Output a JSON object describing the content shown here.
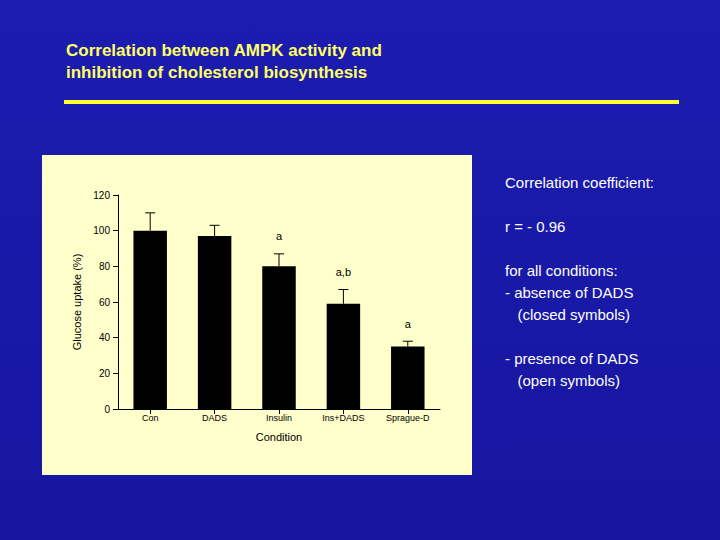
{
  "chart_data": {
    "type": "bar",
    "categories": [
      "Con",
      "DADS",
      "Insulin",
      "Ins+DADS",
      "Sprague-D"
    ],
    "values": [
      100,
      97,
      80,
      59,
      35
    ],
    "errors": [
      10,
      6,
      7,
      8,
      3
    ],
    "annotations": [
      null,
      null,
      "a",
      "a,b",
      "a"
    ],
    "color": "#000000",
    "xlabel": "Condition",
    "ylabel": "Glucose uptake (%)",
    "ylim": [
      0,
      120
    ],
    "yticks": [
      0,
      20,
      40,
      60,
      80,
      100,
      120
    ],
    "grid": false
  },
  "slide": {
    "title": [
      "Correlation between AMPK activity and",
      "inhibition of cholesterol biosynthesis"
    ],
    "notes": [
      [
        "Correlation coefficient:"
      ],
      [
        "r = - 0.96"
      ],
      [
        "for all conditions:",
        "- absence of DADS",
        "   (closed symbols)"
      ],
      [
        "- presence of DADS",
        "   (open symbols)"
      ]
    ]
  }
}
